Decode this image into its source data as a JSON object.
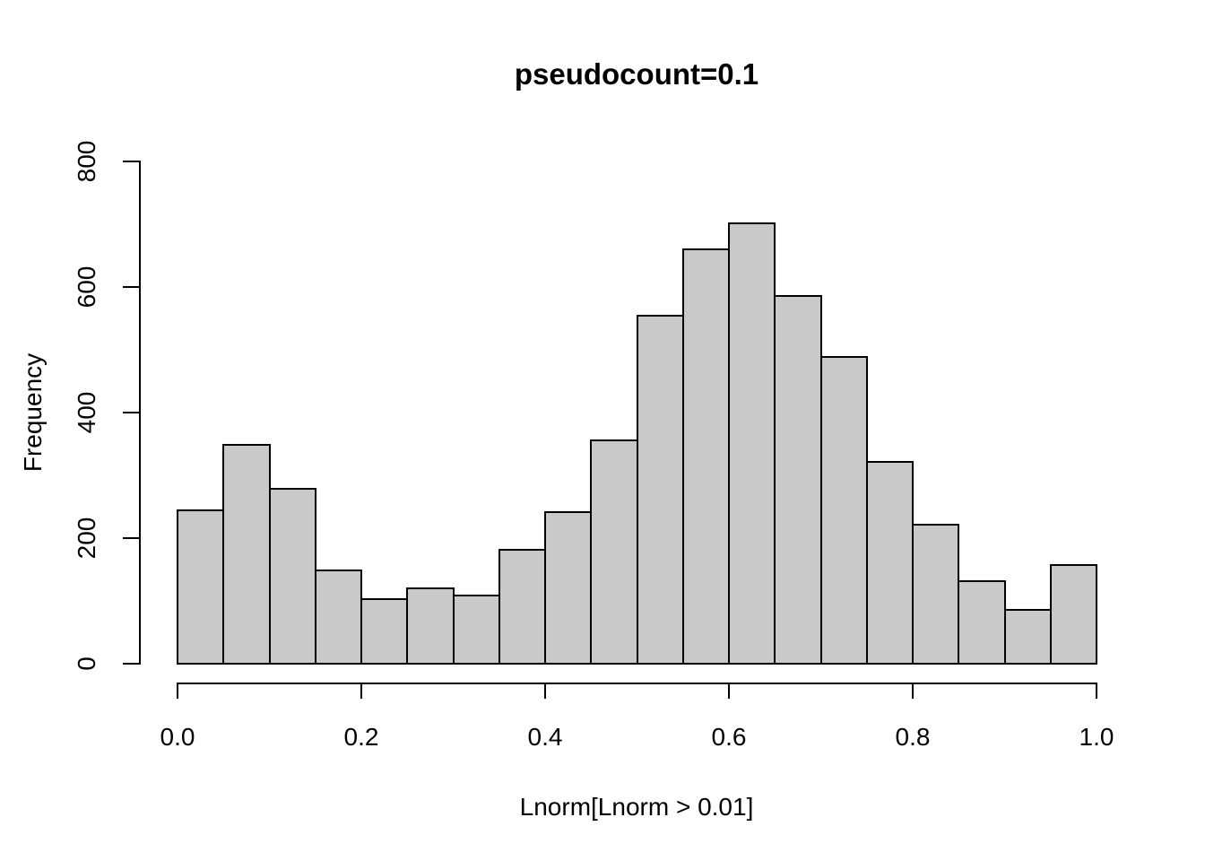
{
  "figure": {
    "title": "pseudocount=0.1",
    "x_axis": {
      "label": "Lnorm[Lnorm > 0.01]",
      "tick_labels": [
        "0.0",
        "0.2",
        "0.4",
        "0.6",
        "0.8",
        "1.0"
      ]
    },
    "y_axis": {
      "label": "Frequency",
      "tick_labels": [
        "0",
        "200",
        "400",
        "600",
        "800"
      ]
    }
  },
  "chart_data": {
    "type": "bar",
    "subtype": "histogram",
    "title": "pseudocount=0.1",
    "xlabel": "Lnorm[Lnorm > 0.01]",
    "ylabel": "Frequency",
    "xlim": [
      0.0,
      1.0
    ],
    "ylim": [
      0,
      800
    ],
    "x_ticks": [
      0.0,
      0.2,
      0.4,
      0.6,
      0.8,
      1.0
    ],
    "y_ticks": [
      0,
      200,
      400,
      600,
      800
    ],
    "bin_width": 0.05,
    "bin_edges": [
      0.0,
      0.05,
      0.1,
      0.15,
      0.2,
      0.25,
      0.3,
      0.35,
      0.4,
      0.45,
      0.5,
      0.55,
      0.6,
      0.65,
      0.7,
      0.75,
      0.8,
      0.85,
      0.9,
      0.95,
      1.0
    ],
    "values": [
      245,
      349,
      278,
      149,
      103,
      120,
      108,
      181,
      241,
      356,
      555,
      660,
      701,
      586,
      488,
      322,
      222,
      132,
      86,
      157
    ],
    "grid": false,
    "legend": false,
    "colors": {
      "bar_fill": "#C9C9C9",
      "bar_border": "#000000",
      "axis": "#000000",
      "text": "#000000",
      "background": "#FFFFFF"
    }
  }
}
